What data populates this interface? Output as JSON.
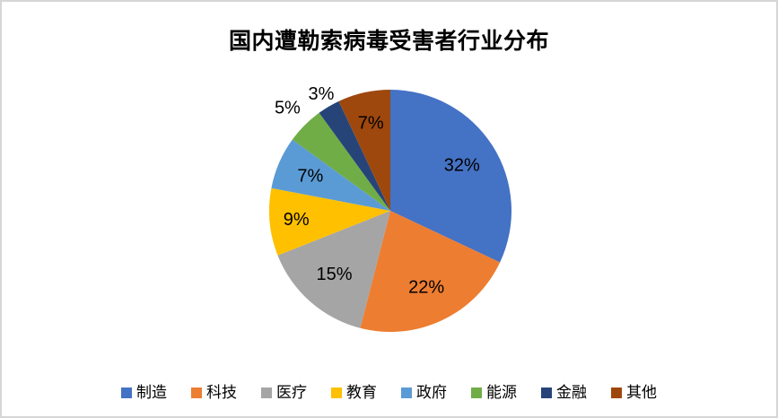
{
  "frame": {
    "background_color": "#FFFFFF",
    "border_color": "#D6D6D6"
  },
  "chart_data": {
    "type": "pie",
    "title": "国内遭勒索病毒受害者行业分布",
    "legend_position": "bottom",
    "start_angle_deg": 0,
    "direction": "clockwise",
    "label_format": "percent",
    "slices": [
      {
        "label": "制造",
        "value": 32,
        "display": "32%",
        "color": "#4472C4",
        "label_inside": true,
        "label_r": 0.7
      },
      {
        "label": "科技",
        "value": 22,
        "display": "22%",
        "color": "#ED7D31",
        "label_inside": true,
        "label_r": 0.7
      },
      {
        "label": "医疗",
        "value": 15,
        "display": "15%",
        "color": "#A5A5A5",
        "label_inside": true,
        "label_r": 0.7
      },
      {
        "label": "教育",
        "value": 9,
        "display": "9%",
        "color": "#FFC000",
        "label_inside": true,
        "label_r": 0.78
      },
      {
        "label": "政府",
        "value": 7,
        "display": "7%",
        "color": "#5B9BD5",
        "label_inside": true,
        "label_r": 0.72
      },
      {
        "label": "能源",
        "value": 5,
        "display": "5%",
        "color": "#70AD47",
        "label_inside": false,
        "label_r": 1.2
      },
      {
        "label": "金融",
        "value": 3,
        "display": "3%",
        "color": "#264478",
        "label_inside": false,
        "label_r": 1.12
      },
      {
        "label": "其他",
        "value": 7,
        "display": "7%",
        "color": "#9E480E",
        "label_inside": true,
        "label_r": 0.74
      }
    ]
  }
}
